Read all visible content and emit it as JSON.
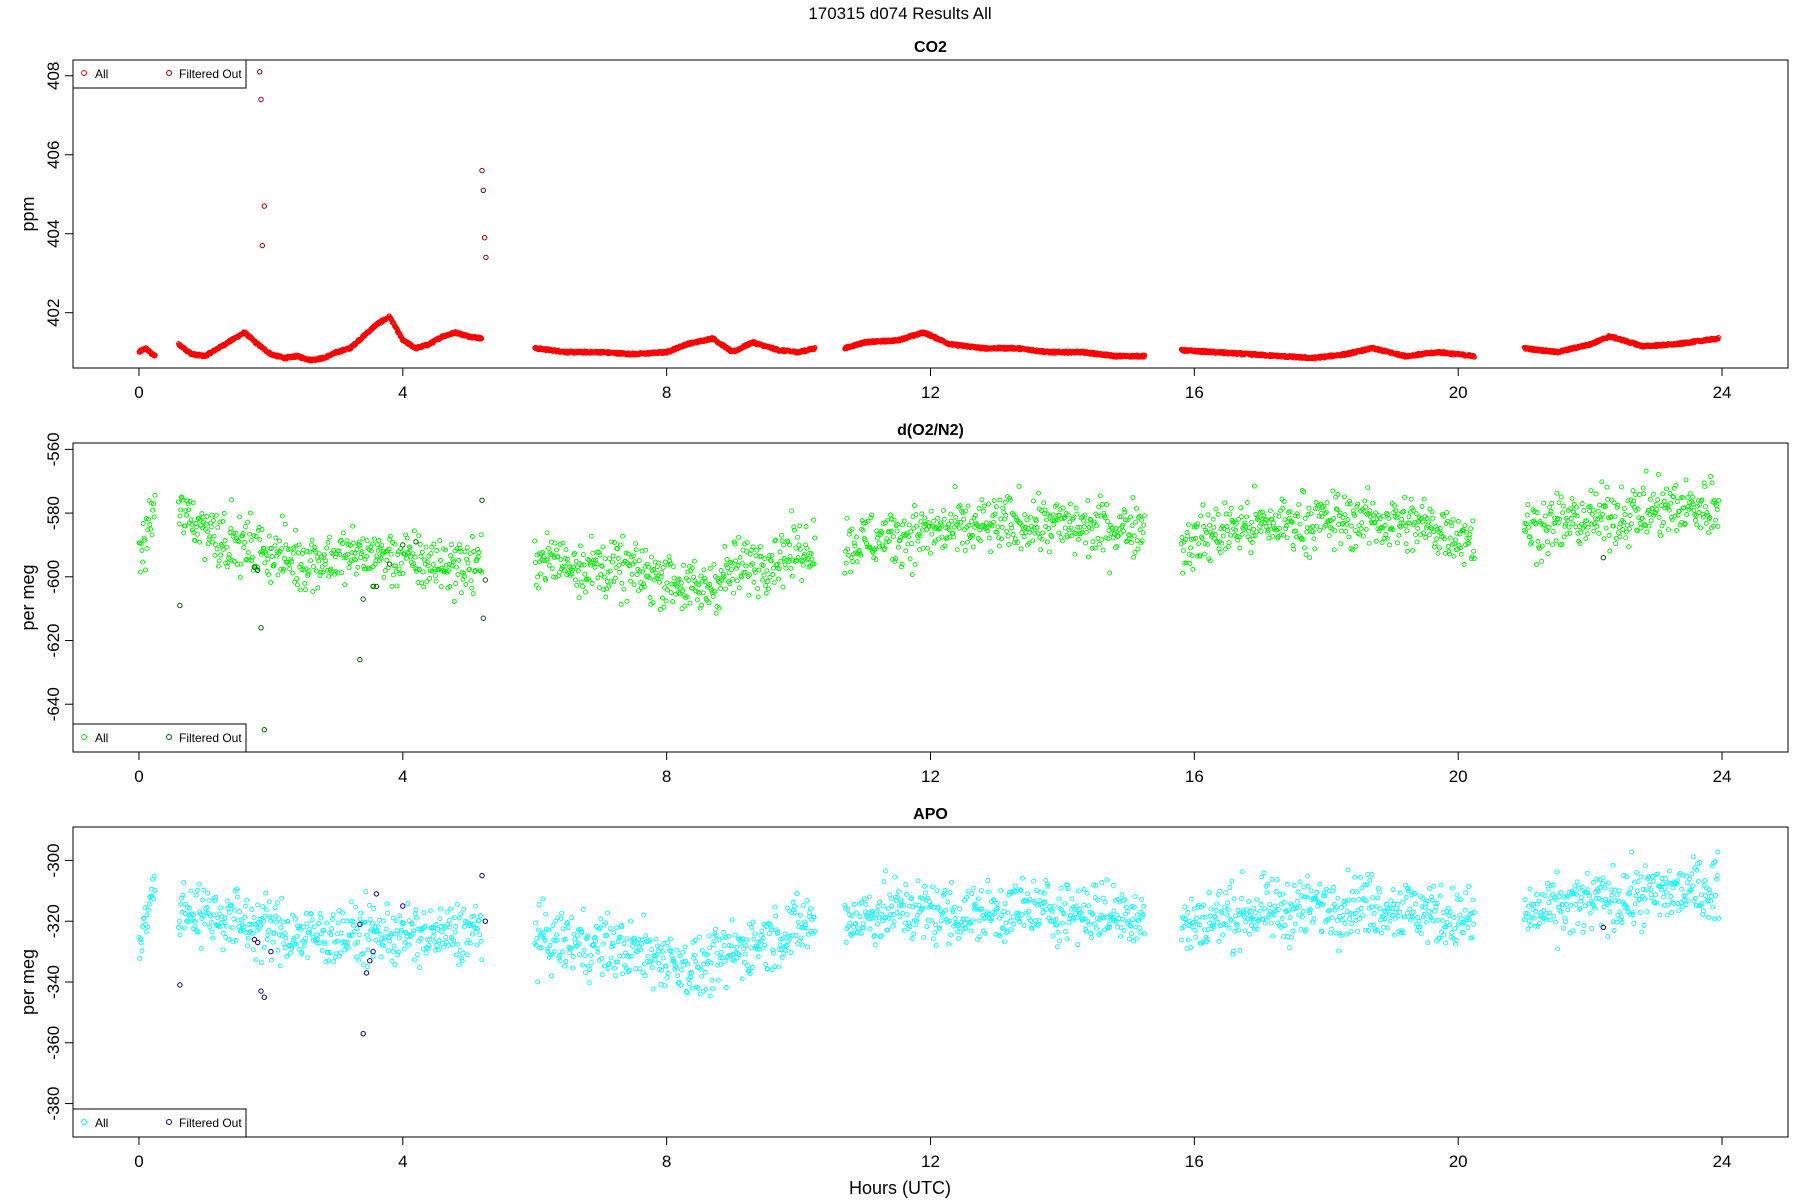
{
  "figure_title": "170315   d074   Results All",
  "xlabel": "Hours (UTC)",
  "colors": {
    "co2_all": "#ff0000",
    "co2_filtered": "#8b0000",
    "o2_all": "#00ee00",
    "o2_filtered": "#006400",
    "apo_all": "#00ffff",
    "apo_filtered": "#00008b"
  },
  "chart_data": [
    {
      "type": "scatter",
      "title": "CO2",
      "xlabel": "",
      "ylabel": "ppm",
      "xlim": [
        -1.0,
        25.0
      ],
      "ylim": [
        400.6,
        408.4
      ],
      "x_ticks": [
        0,
        4,
        8,
        12,
        16,
        20,
        24
      ],
      "y_ticks": [
        402,
        404,
        406,
        408
      ],
      "grid": false,
      "legend_position": "top-left",
      "legend": [
        "All",
        "Filtered Out"
      ],
      "segments": [
        [
          0.0,
          0.25
        ],
        [
          0.6,
          5.2
        ],
        [
          6.0,
          10.25
        ],
        [
          10.7,
          15.25
        ],
        [
          15.8,
          20.25
        ],
        [
          21.0,
          23.95
        ]
      ],
      "series": [
        {
          "name": "All",
          "x": [
            0.0,
            0.1,
            0.2,
            0.25,
            0.6,
            0.8,
            1.0,
            1.2,
            1.4,
            1.6,
            1.8,
            2.0,
            2.2,
            2.4,
            2.6,
            2.8,
            3.0,
            3.2,
            3.4,
            3.6,
            3.8,
            4.0,
            4.2,
            4.4,
            4.6,
            4.8,
            5.0,
            5.2,
            6.0,
            6.5,
            7.0,
            7.5,
            8.0,
            8.3,
            8.7,
            9.0,
            9.3,
            9.7,
            10.0,
            10.25,
            10.7,
            11.0,
            11.5,
            11.9,
            12.3,
            12.8,
            13.3,
            13.8,
            14.3,
            14.8,
            15.25,
            15.8,
            16.3,
            16.8,
            17.3,
            17.8,
            18.3,
            18.7,
            19.2,
            19.7,
            20.25,
            21.0,
            21.5,
            22.0,
            22.3,
            22.8,
            23.3,
            23.95
          ],
          "y": [
            401.0,
            401.1,
            400.95,
            400.9,
            401.2,
            400.95,
            400.9,
            401.1,
            401.3,
            401.5,
            401.2,
            400.95,
            400.85,
            400.9,
            400.8,
            400.85,
            401.0,
            401.1,
            401.4,
            401.7,
            401.9,
            401.3,
            401.1,
            401.2,
            401.4,
            401.5,
            401.4,
            401.35,
            401.1,
            401.0,
            401.0,
            400.95,
            401.0,
            401.2,
            401.35,
            401.0,
            401.25,
            401.05,
            401.0,
            401.1,
            401.1,
            401.25,
            401.3,
            401.5,
            401.2,
            401.1,
            401.1,
            401.0,
            401.0,
            400.9,
            400.9,
            401.05,
            401.0,
            400.95,
            400.9,
            400.85,
            400.95,
            401.1,
            400.9,
            401.0,
            400.9,
            401.1,
            401.0,
            401.2,
            401.4,
            401.15,
            401.2,
            401.35
          ]
        },
        {
          "name": "Filtered Out",
          "x": [
            1.83,
            1.85,
            1.87,
            1.9,
            5.2,
            5.22,
            5.24,
            5.26
          ],
          "y": [
            408.1,
            407.4,
            403.7,
            404.7,
            405.6,
            405.1,
            403.9,
            403.4
          ]
        }
      ]
    },
    {
      "type": "scatter",
      "title": "d(O2/N2)",
      "xlabel": "",
      "ylabel": "per meg",
      "xlim": [
        -1.0,
        25.0
      ],
      "ylim": [
        -655,
        -558
      ],
      "x_ticks": [
        0,
        4,
        8,
        12,
        16,
        20,
        24
      ],
      "y_ticks": [
        -640,
        -620,
        -600,
        -580,
        -560
      ],
      "grid": false,
      "legend_position": "bottom-left",
      "legend": [
        "All",
        "Filtered Out"
      ],
      "segments": [
        [
          0.0,
          0.25
        ],
        [
          0.6,
          5.2
        ],
        [
          6.0,
          10.25
        ],
        [
          10.7,
          15.25
        ],
        [
          15.8,
          20.25
        ],
        [
          21.0,
          23.95
        ]
      ],
      "series": [
        {
          "name": "All",
          "x": [
            0.0,
            0.25,
            0.6,
            1.5,
            2.5,
            3.5,
            4.5,
            5.2,
            6.0,
            7.0,
            8.0,
            8.5,
            9.0,
            10.25,
            10.7,
            11.5,
            12.5,
            13.5,
            14.5,
            15.25,
            15.8,
            16.5,
            17.5,
            18.5,
            19.5,
            20.25,
            21.0,
            22.0,
            23.0,
            23.95
          ],
          "y": [
            -595,
            -577,
            -580,
            -590,
            -595,
            -593,
            -596,
            -597,
            -594,
            -597,
            -600,
            -605,
            -598,
            -590,
            -590,
            -587,
            -585,
            -583,
            -585,
            -584,
            -590,
            -585,
            -583,
            -582,
            -584,
            -588,
            -585,
            -582,
            -579,
            -578
          ],
          "noise": 8
        },
        {
          "name": "Filtered Out",
          "x": [
            0.62,
            1.75,
            1.8,
            1.85,
            1.9,
            3.35,
            3.4,
            3.55,
            3.6,
            3.8,
            4.0,
            4.2,
            5.2,
            5.22,
            5.25,
            22.2
          ],
          "y": [
            -609,
            -597,
            -598,
            -616,
            -648,
            -626,
            -607,
            -603,
            -603,
            -596,
            -590,
            -589,
            -576,
            -613,
            -601,
            -594
          ]
        }
      ]
    },
    {
      "type": "scatter",
      "title": "APO",
      "xlabel": "Hours (UTC)",
      "ylabel": "per meg",
      "xlim": [
        -1.0,
        25.0
      ],
      "ylim": [
        -391,
        -289
      ],
      "x_ticks": [
        0,
        4,
        8,
        12,
        16,
        20,
        24
      ],
      "y_ticks": [
        -380,
        -360,
        -340,
        -320,
        -300
      ],
      "grid": false,
      "legend_position": "bottom-left",
      "legend": [
        "All",
        "Filtered Out"
      ],
      "segments": [
        [
          0.0,
          0.25
        ],
        [
          0.6,
          5.2
        ],
        [
          6.0,
          10.25
        ],
        [
          10.7,
          15.25
        ],
        [
          15.8,
          20.25
        ],
        [
          21.0,
          23.95
        ]
      ],
      "series": [
        {
          "name": "All",
          "x": [
            0.0,
            0.25,
            0.6,
            1.5,
            2.5,
            3.5,
            4.5,
            5.2,
            6.0,
            7.0,
            8.0,
            8.5,
            9.0,
            10.25,
            10.7,
            11.5,
            12.5,
            13.5,
            14.5,
            15.25,
            15.8,
            16.5,
            17.5,
            18.5,
            19.5,
            20.25,
            21.0,
            22.0,
            23.0,
            23.95
          ],
          "y": [
            -325,
            -310,
            -315,
            -320,
            -325,
            -324,
            -325,
            -323,
            -326,
            -328,
            -332,
            -336,
            -330,
            -320,
            -320,
            -316,
            -318,
            -316,
            -317,
            -318,
            -322,
            -318,
            -316,
            -314,
            -317,
            -320,
            -318,
            -314,
            -311,
            -309
          ],
          "noise": 9
        },
        {
          "name": "Filtered Out",
          "x": [
            0.62,
            1.75,
            1.8,
            1.85,
            1.9,
            2.0,
            3.35,
            3.4,
            3.45,
            3.5,
            3.55,
            3.6,
            4.0,
            5.2,
            5.25,
            22.2
          ],
          "y": [
            -341,
            -326,
            -327,
            -343,
            -345,
            -330,
            -321,
            -357,
            -337,
            -333,
            -330,
            -311,
            -315,
            -305,
            -320,
            -322
          ]
        }
      ]
    }
  ]
}
